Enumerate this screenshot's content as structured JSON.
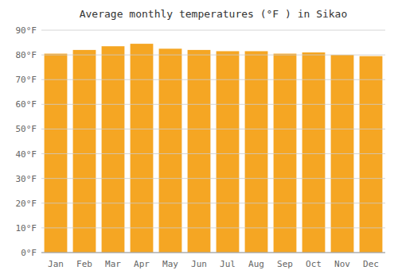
{
  "chart_data": {
    "type": "bar",
    "title": "Average monthly temperatures (°F ) in Sikao",
    "categories": [
      "Jan",
      "Feb",
      "Mar",
      "Apr",
      "May",
      "Jun",
      "Jul",
      "Aug",
      "Sep",
      "Oct",
      "Nov",
      "Dec"
    ],
    "values": [
      80.5,
      82.0,
      83.5,
      84.5,
      82.5,
      82.0,
      81.5,
      81.5,
      80.5,
      81.0,
      80.0,
      79.5
    ],
    "color": "#F5A623",
    "ylim": [
      0,
      90
    ],
    "yticks": [
      {
        "value": 0,
        "label": "0°F"
      },
      {
        "value": 10,
        "label": "10°F"
      },
      {
        "value": 20,
        "label": "20°F"
      },
      {
        "value": 30,
        "label": "30°F"
      },
      {
        "value": 40,
        "label": "40°F"
      },
      {
        "value": 50,
        "label": "50°F"
      },
      {
        "value": 60,
        "label": "60°F"
      },
      {
        "value": 70,
        "label": "70°F"
      },
      {
        "value": 80,
        "label": "80°F"
      },
      {
        "value": 90,
        "label": "90°F"
      }
    ],
    "grid": true
  }
}
